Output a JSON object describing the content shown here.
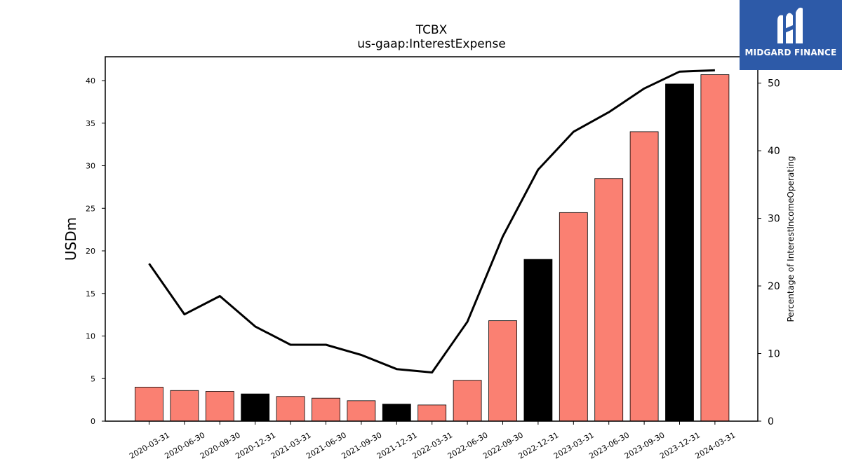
{
  "chart_data": {
    "type": "bar",
    "title": "TCBX",
    "subtitle": "us-gaap:InterestExpense",
    "ylabel": "USDm",
    "y2label": "Percentage of InterestIncomeOperating",
    "ylim": [
      0,
      42.8
    ],
    "y2lim": [
      0,
      53.9
    ],
    "yticks": [
      0,
      5,
      10,
      15,
      20,
      25,
      30,
      35,
      40
    ],
    "y2ticks": [
      0,
      10,
      20,
      30,
      40,
      50
    ],
    "categories": [
      "2020-03-31",
      "2020-06-30",
      "2020-09-30",
      "2020-12-31",
      "2021-03-31",
      "2021-06-30",
      "2021-09-30",
      "2021-12-31",
      "2022-03-31",
      "2022-06-30",
      "2022-09-30",
      "2022-12-31",
      "2023-03-31",
      "2023-06-30",
      "2023-09-30",
      "2023-12-31",
      "2024-03-31"
    ],
    "series": [
      {
        "kind": "bar",
        "values": [
          4.0,
          3.6,
          3.5,
          3.2,
          2.9,
          2.7,
          2.4,
          2.0,
          1.9,
          4.8,
          11.8,
          19.0,
          24.5,
          28.5,
          34.0,
          39.6,
          40.7
        ],
        "colors": [
          "#fa8072",
          "#fa8072",
          "#fa8072",
          "#000000",
          "#fa8072",
          "#fa8072",
          "#fa8072",
          "#000000",
          "#fa8072",
          "#fa8072",
          "#fa8072",
          "#000000",
          "#fa8072",
          "#fa8072",
          "#fa8072",
          "#000000",
          "#fa8072"
        ]
      },
      {
        "kind": "line",
        "axis": "right",
        "values": [
          23.3,
          15.8,
          18.5,
          14.0,
          11.3,
          11.3,
          9.8,
          7.7,
          7.2,
          14.7,
          27.3,
          37.2,
          42.8,
          45.7,
          49.2,
          51.7,
          51.9
        ],
        "color": "#000000"
      }
    ],
    "grid": false
  },
  "branding": {
    "logo_text": "MIDGARD FINANCE",
    "logo_color": "#2d5aa8"
  }
}
